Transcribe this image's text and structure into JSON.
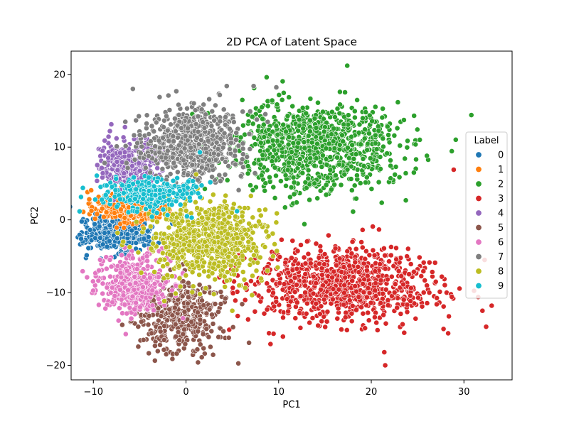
{
  "chart_data": {
    "type": "scatter",
    "title": "2D PCA of Latent Space",
    "xlabel": "PC1",
    "ylabel": "PC2",
    "xlim": [
      -12.4,
      35.2
    ],
    "ylim": [
      -22.0,
      23.2
    ],
    "xticks": [
      -10,
      0,
      10,
      20,
      30
    ],
    "yticks": [
      -20,
      -10,
      0,
      10,
      20
    ],
    "grid": false,
    "legend": {
      "title": "Label",
      "placement": "right"
    },
    "series": [
      {
        "name": "0",
        "color": "#1f77b4",
        "n": 480,
        "mean": [
          -7.5,
          -2.0
        ],
        "sd": [
          1.7,
          1.2
        ],
        "outliers": [
          [
            -10.2,
            -2.8
          ],
          [
            -9.8,
            -2.5
          ],
          [
            -4.5,
            -3.5
          ]
        ]
      },
      {
        "name": "1",
        "color": "#ff7f0e",
        "n": 450,
        "mean": [
          -6.0,
          1.8
        ],
        "sd": [
          1.9,
          1.0
        ],
        "outliers": [
          [
            -9.5,
            2.5
          ],
          [
            -3.8,
            1.2
          ]
        ]
      },
      {
        "name": "2",
        "color": "#2ca02c",
        "n": 1000,
        "mean": [
          14.0,
          10.2
        ],
        "sd": [
          4.5,
          3.0
        ],
        "outliers": [
          [
            30.8,
            14.4
          ],
          [
            17.4,
            21.2
          ],
          [
            24.6,
            6.5
          ],
          [
            21.0,
            7.0
          ],
          [
            8.5,
            4.0
          ],
          [
            9.6,
            3.0
          ]
        ]
      },
      {
        "name": "3",
        "color": "#d62728",
        "n": 900,
        "mean": [
          17.0,
          -9.0
        ],
        "sd": [
          5.0,
          2.6
        ],
        "outliers": [
          [
            28.9,
            6.9
          ],
          [
            32.0,
            -12.5
          ],
          [
            33.0,
            -11.8
          ],
          [
            32.4,
            -14.7
          ],
          [
            21.5,
            -20.0
          ],
          [
            21.4,
            -18.2
          ],
          [
            27.8,
            -15.0
          ],
          [
            28.3,
            -15.6
          ]
        ]
      },
      {
        "name": "4",
        "color": "#9467bd",
        "n": 320,
        "mean": [
          -6.2,
          7.8
        ],
        "sd": [
          1.8,
          1.6
        ],
        "outliers": [
          [
            -9.0,
            9.5
          ],
          [
            -7.5,
            11.2
          ]
        ]
      },
      {
        "name": "5",
        "color": "#8c564b",
        "n": 450,
        "mean": [
          -0.8,
          -13.0
        ],
        "sd": [
          2.4,
          2.4
        ],
        "outliers": [
          [
            1.3,
            -19.6
          ],
          [
            1.7,
            -18.9
          ],
          [
            -1.0,
            -18.4
          ],
          [
            6.8,
            -16.9
          ]
        ]
      },
      {
        "name": "6",
        "color": "#e377c2",
        "n": 420,
        "mean": [
          -5.8,
          -8.8
        ],
        "sd": [
          1.8,
          2.0
        ],
        "outliers": [
          [
            -6.5,
            -15.7
          ],
          [
            -8.5,
            -11.7
          ],
          [
            -8.7,
            -12.2
          ]
        ]
      },
      {
        "name": "7",
        "color": "#7f7f7f",
        "n": 650,
        "mean": [
          0.6,
          10.5
        ],
        "sd": [
          2.8,
          2.5
        ],
        "outliers": [
          [
            7.3,
            18.4
          ],
          [
            -1.9,
            17.1
          ],
          [
            4.4,
            18.4
          ]
        ]
      },
      {
        "name": "8",
        "color": "#bcbd22",
        "n": 700,
        "mean": [
          2.5,
          -2.8
        ],
        "sd": [
          3.0,
          2.8
        ],
        "outliers": [
          [
            9.4,
            -5.0
          ],
          [
            8.8,
            -7.0
          ],
          [
            5.0,
            -12.5
          ]
        ]
      },
      {
        "name": "9",
        "color": "#17becf",
        "n": 320,
        "mean": [
          -4.0,
          3.6
        ],
        "sd": [
          2.4,
          1.1
        ],
        "outliers": [
          [
            -9.8,
            2.8
          ],
          [
            1.5,
            9.3
          ],
          [
            5.5,
            1.2
          ]
        ]
      }
    ]
  }
}
